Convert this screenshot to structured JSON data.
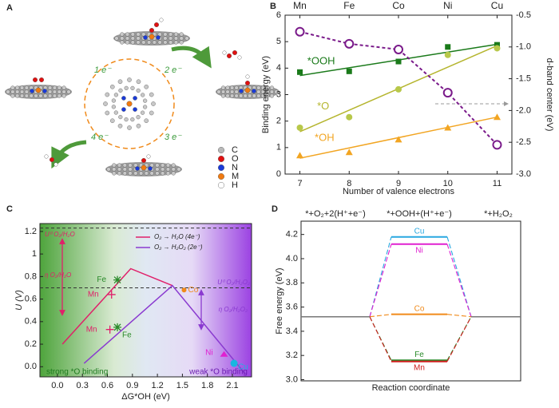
{
  "panel_labels": [
    "A",
    "B",
    "C",
    "D"
  ],
  "diagram": {
    "electrons": [
      "1 e⁻",
      "2 e⁻",
      "3 e⁻",
      "4 e⁻"
    ],
    "legend": [
      {
        "label": "C",
        "color": "#b8b8b8"
      },
      {
        "label": "O",
        "color": "#e01010"
      },
      {
        "label": "N",
        "color": "#1a3ad8"
      },
      {
        "label": "M",
        "color": "#f07a10"
      },
      {
        "label": "H",
        "color": "#ffffff"
      }
    ]
  },
  "chart_data": [
    {
      "type": "scatter",
      "categories": [
        "Mn",
        "Fe",
        "Co",
        "Ni",
        "Cu"
      ],
      "x": [
        7,
        8,
        9,
        10,
        11
      ],
      "xlim": [
        6.7,
        11.3
      ],
      "xticks": [
        7,
        8,
        9,
        10,
        11
      ],
      "ylim": [
        0,
        6
      ],
      "yticks": [
        0,
        1,
        2,
        3,
        4,
        5,
        6
      ],
      "y2lim": [
        -3,
        -0.5
      ],
      "y2ticks": [
        {
          "value": -3,
          "label": "-3.0"
        },
        -2.5,
        {
          "value": -2,
          "label": "-2.0"
        },
        -1.5,
        {
          "value": -1,
          "label": "-1.0"
        },
        -0.5
      ],
      "x_label": "Number of valence electrons",
      "y_label": "Binding energy (eV)",
      "y2_label": "d-band center (eV)",
      "fit_x": [
        7,
        11
      ],
      "series": [
        {
          "name": "*OOH",
          "color": "#1a7a1a",
          "marker": "square",
          "values": [
            3.85,
            3.88,
            4.25,
            4.8,
            4.88
          ],
          "fit": [
            3.72,
            4.9
          ]
        },
        {
          "name": "*O",
          "color": "#b5b52e",
          "marker": "circle",
          "values": [
            1.75,
            2.15,
            3.2,
            4.5,
            4.75
          ],
          "fit": [
            1.6,
            4.85
          ]
        },
        {
          "name": "*OH",
          "color": "#f2a522",
          "marker": "triangle",
          "values": [
            0.7,
            0.82,
            1.3,
            1.75,
            2.15
          ],
          "fit": [
            0.6,
            2.15
          ]
        },
        {
          "name": null,
          "color": "#7a1a8a",
          "marker": "open-circle",
          "axis": "y2",
          "values": [
            -0.76,
            -0.95,
            -1.04,
            -1.72,
            -2.54
          ]
        }
      ]
    },
    {
      "type": "line",
      "xlim": [
        -0.21,
        2.33
      ],
      "xticks": [
        {
          "value": 0,
          "label": "0.0"
        },
        0.3,
        0.6,
        0.9,
        1.2,
        1.5,
        1.8,
        2.1
      ],
      "ylim": [
        -0.09,
        1.27
      ],
      "yticks": [
        {
          "value": 0,
          "label": "0.0"
        },
        0.2,
        0.4,
        0.6,
        0.8,
        1,
        1.2
      ],
      "x_label": "ΔG*OH (eV)",
      "y_label": "U (V)",
      "hlines": [
        1.23,
        0.7
      ],
      "series": [
        {
          "name": "O₂ → H₂O (4e⁻)",
          "color": "#e0206a",
          "x": [
            0.06,
            0.88,
            1.38
          ],
          "values": [
            0.2,
            0.87,
            0.72
          ]
        },
        {
          "name": "O₂ → H₂O₂ (2e⁻)",
          "color": "#8a3ad0",
          "x": [
            0.32,
            1.38,
            2.25
          ],
          "values": [
            0.03,
            0.72,
            -0.06
          ]
        }
      ],
      "points": [
        {
          "name": "Fe",
          "x": 0.72,
          "value": 0.77,
          "color": "#2a8a2a",
          "marker": "star"
        },
        {
          "name": "Mn",
          "x": 0.65,
          "value": 0.64,
          "color": "#e0206a",
          "marker": "plus"
        },
        {
          "name": "Mn",
          "x": 0.63,
          "value": 0.33,
          "color": "#e0206a",
          "marker": "plus"
        },
        {
          "name": "Fe",
          "x": 0.72,
          "value": 0.35,
          "color": "#2a8a2a",
          "marker": "star"
        },
        {
          "name": "Co",
          "x": 1.52,
          "value": 0.68,
          "color": "#f08a1a",
          "marker": "circle"
        },
        {
          "name": "Ni",
          "x": 2.0,
          "value": 0.11,
          "color": "#e020d0",
          "marker": "triangle"
        },
        {
          "name": "Cu",
          "x": 2.12,
          "value": 0.03,
          "color": "#19b6e0",
          "marker": "circle"
        }
      ],
      "annotations": [
        "U⁰ O₂/H₂O",
        "η O₂/H₂O",
        "U⁰ O₂/H₂O₂",
        "η O₂/H₂O₂",
        "strong *O binding",
        "weak *O binding"
      ]
    },
    {
      "type": "step",
      "categories": [
        "*+O₂+2(H⁺+e⁻)",
        "*+OOH+(H⁺+e⁻)",
        "*+H₂O₂"
      ],
      "x_label": "Reaction coordinate",
      "y_label": "Free energy (eV)",
      "ylim": [
        2.99,
        4.31
      ],
      "yticks": [
        {
          "value": 3,
          "label": "3.0"
        },
        3.2,
        3.4,
        3.6,
        3.8,
        {
          "value": 4,
          "label": "4.0"
        },
        4.2
      ],
      "level_color": "#777777",
      "series": [
        {
          "name": "Cu",
          "color": "#29a8e0",
          "values": [
            3.52,
            4.18,
            3.52
          ]
        },
        {
          "name": "Ni",
          "color": "#e020d0",
          "values": [
            3.52,
            4.12,
            3.52
          ]
        },
        {
          "name": "Co",
          "color": "#f08a1a",
          "values": [
            3.52,
            3.54,
            3.52
          ]
        },
        {
          "name": "Fe",
          "color": "#2a8a2a",
          "values": [
            3.52,
            3.16,
            3.52
          ]
        },
        {
          "name": "Mn",
          "color": "#d02020",
          "values": [
            3.52,
            3.15,
            3.52
          ]
        }
      ]
    }
  ]
}
